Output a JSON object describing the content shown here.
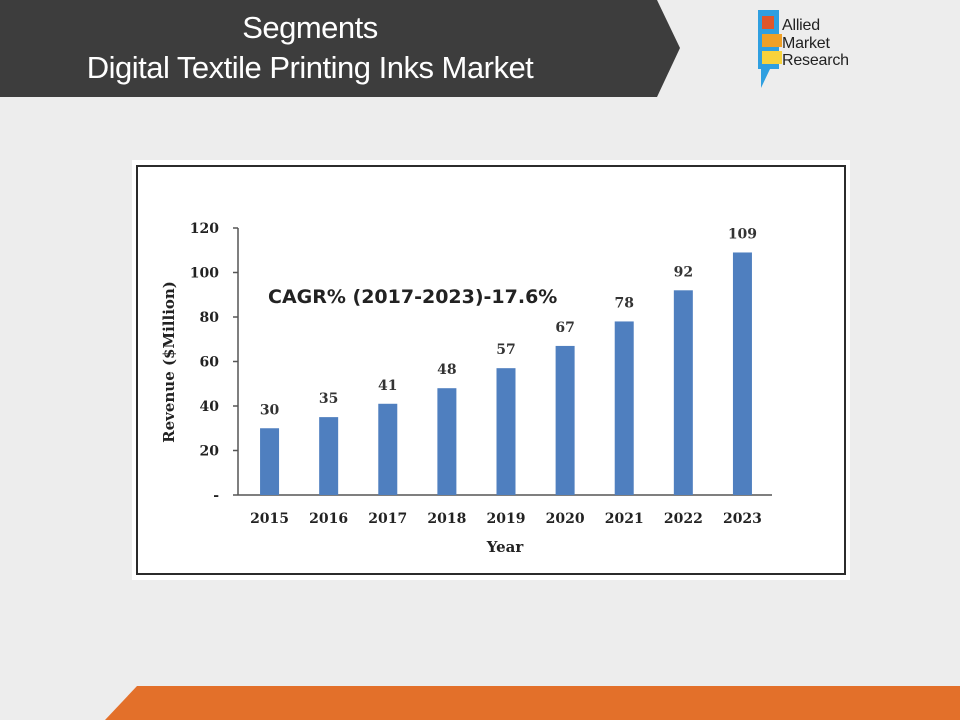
{
  "header": {
    "title_line1": "Segments",
    "title_line2": "Digital Textile Printing Inks Market"
  },
  "logo": {
    "line1": "Allied",
    "line2": "Market",
    "line3": "Research"
  },
  "colors": {
    "header_bg": "#3d3d3d",
    "bar": "#4f7fbf",
    "footer": "#e3702a",
    "logo_orange": "#e0562b",
    "logo_amber": "#f0a026",
    "logo_yellow": "#f7d23c",
    "logo_blue": "#2f9fe0"
  },
  "chart_data": {
    "type": "bar",
    "categories": [
      "2015",
      "2016",
      "2017",
      "2018",
      "2019",
      "2020",
      "2021",
      "2022",
      "2023"
    ],
    "values": [
      30,
      35,
      41,
      48,
      57,
      67,
      78,
      92,
      109
    ],
    "title": "",
    "annotation": "CAGR% (2017-2023)-17.6%",
    "xlabel": "Year",
    "ylabel": "Revenue ($Million)",
    "ylim": [
      0,
      120
    ],
    "yticks": [
      0,
      20,
      40,
      60,
      80,
      100,
      120
    ],
    "ytick_labels": [
      "-",
      "20",
      "40",
      "60",
      "80",
      "100",
      "120"
    ],
    "grid": false,
    "legend": "none"
  }
}
